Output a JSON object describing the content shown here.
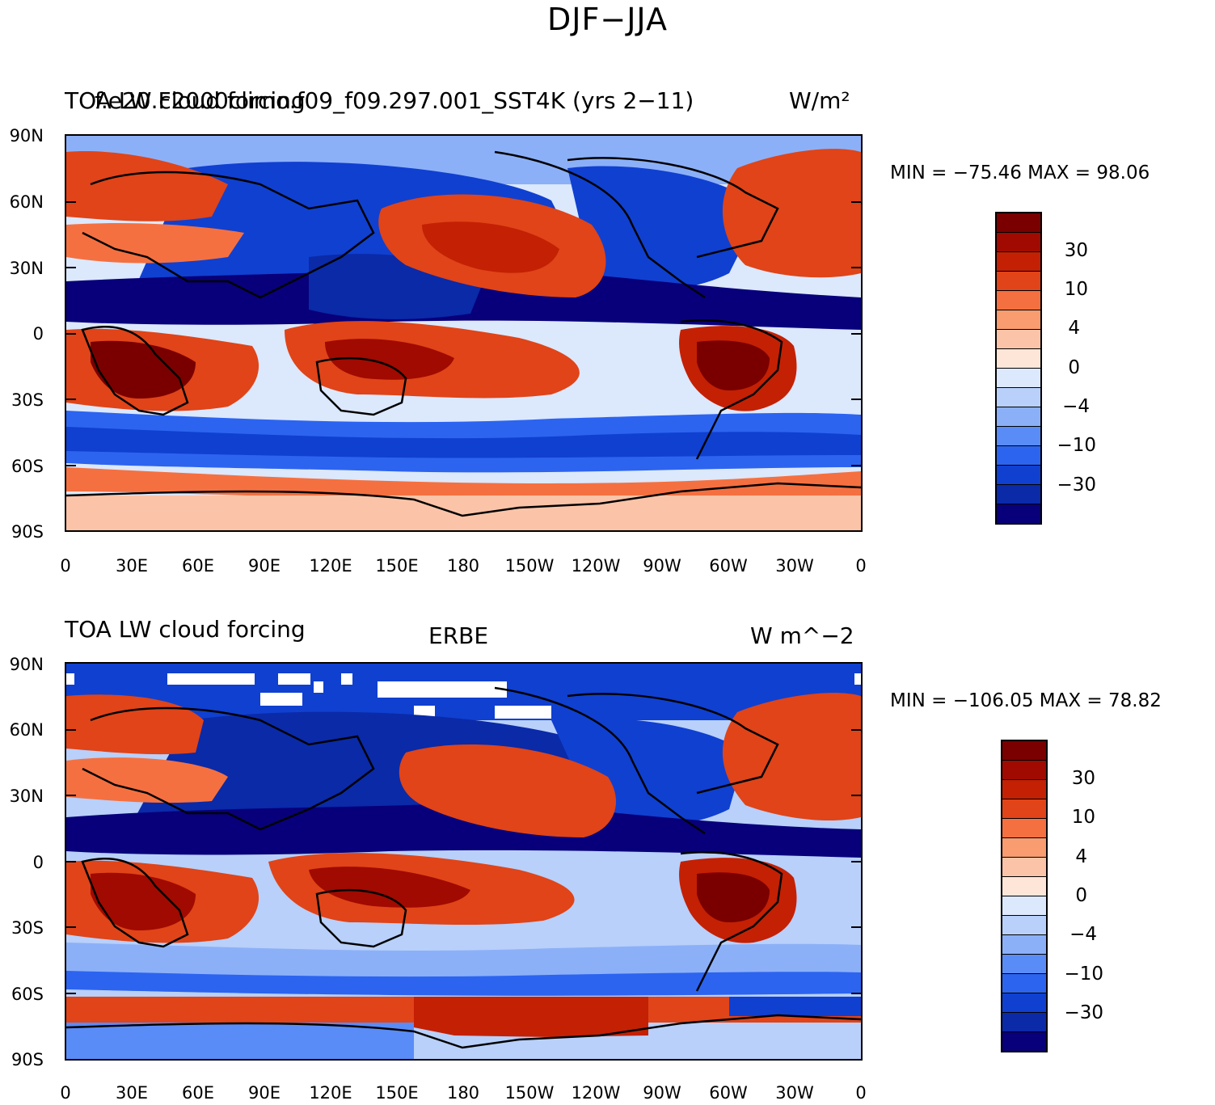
{
  "title": "DJF−JJA",
  "colors": {
    "scale": [
      "#08007a",
      "#0a2aa8",
      "#1040d0",
      "#2c64f0",
      "#5a8cf8",
      "#8cb0f8",
      "#b8d0fa",
      "#dce8fc",
      "#fde6d8",
      "#fbc4a8",
      "#f99c70",
      "#f57040",
      "#e04418",
      "#c42004",
      "#a00a00",
      "#7a0000"
    ]
  },
  "panels": [
    {
      "id": "top",
      "title_left": "TOA LW cloud forcing",
      "title_center": "f.e20.F2000climo.f09_f09.297.001_SST4K (yrs 2−11)",
      "title_right": "W/m²",
      "stats": "MIN = −75.46 MAX =   98.06"
    },
    {
      "id": "bottom",
      "title_left": "TOA LW cloud forcing",
      "title_center": "ERBE",
      "title_right": "W m^−2",
      "stats": "MIN = −106.05 MAX =   78.82"
    }
  ],
  "axes": {
    "lat_labels": [
      "90N",
      "60N",
      "30N",
      "0",
      "30S",
      "60S",
      "90S"
    ],
    "lon_labels": [
      "0",
      "30E",
      "60E",
      "90E",
      "120E",
      "150E",
      "180",
      "150W",
      "120W",
      "90W",
      "60W",
      "30W",
      "0"
    ]
  },
  "colorbar": {
    "labels": [
      "30",
      "10",
      "4",
      "0",
      "−4",
      "−10",
      "−30"
    ]
  }
}
